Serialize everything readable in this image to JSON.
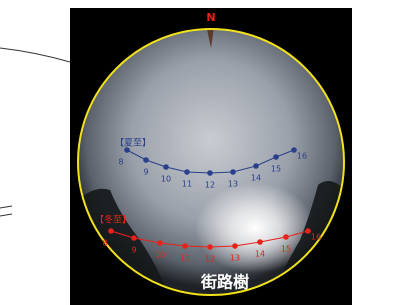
{
  "compass": {
    "north": "N"
  },
  "summer_path": {
    "label": "【夏至】",
    "hours": [
      "8",
      "9",
      "10",
      "11",
      "12",
      "13",
      "14",
      "15",
      "16"
    ]
  },
  "winter_path": {
    "label": "【冬至】",
    "hours": [
      "8",
      "9",
      "10",
      "11",
      "12",
      "13",
      "14",
      "15",
      "16"
    ]
  },
  "caption": "街路樹"
}
